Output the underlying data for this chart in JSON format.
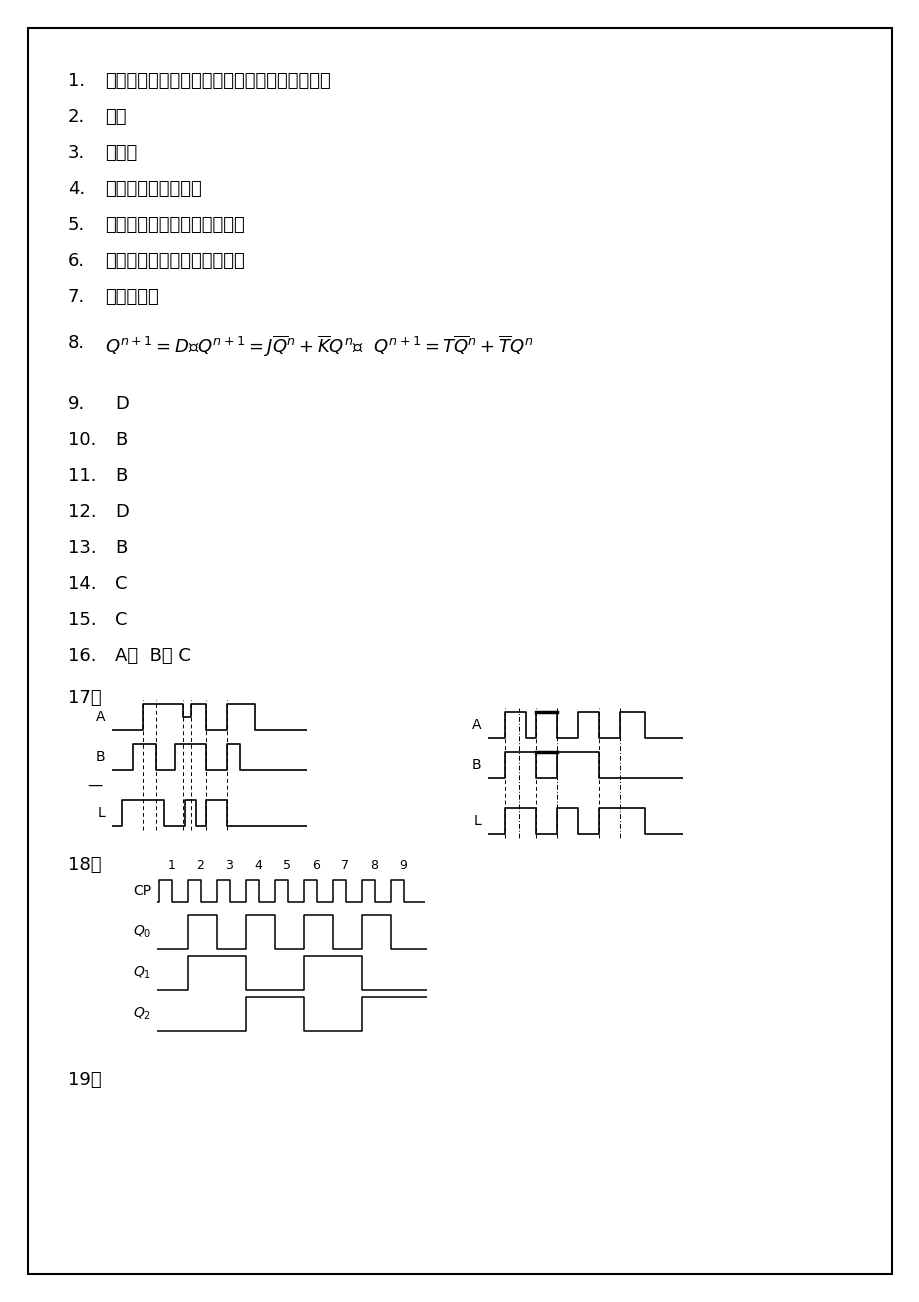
{
  "bg_color": "#ffffff",
  "border_color": "#000000",
  "items_1_7": [
    {
      "num": "1.",
      "text": "小规模、中规模、大规模、超大规模、甚大规模"
    },
    {
      "num": "2.",
      "text": "竞争"
    },
    {
      "num": "3.",
      "text": "锁存器"
    },
    {
      "num": "4.",
      "text": "组合电路、存储电路"
    },
    {
      "num": "5.",
      "text": "只读存储器、随机存取存储器"
    },
    {
      "num": "6.",
      "text": "异或门、与门、半加器、或门"
    },
    {
      "num": "7.",
      "text": "截止、导通"
    }
  ],
  "items_9_16": [
    {
      "num": "9.",
      "text": "D"
    },
    {
      "num": "10.",
      "text": "B"
    },
    {
      "num": "11.",
      "text": "B"
    },
    {
      "num": "12.",
      "text": "D"
    },
    {
      "num": "13.",
      "text": "B"
    },
    {
      "num": "14.",
      "text": "C"
    },
    {
      "num": "15.",
      "text": "C"
    },
    {
      "num": "16.",
      "text": "A、  B、 C"
    }
  ],
  "label_17": "17：",
  "label_18": "18：",
  "label_19": "19：",
  "item8_num": "8.",
  "item8_formula": "$Q^{n+1}=D$、$Q^{n+1}=J\\overline{Q}^n+\\overline{K}Q^n$、  $Q^{n+1}=T\\overline{Q}^n+\\overline{T}Q^n$"
}
